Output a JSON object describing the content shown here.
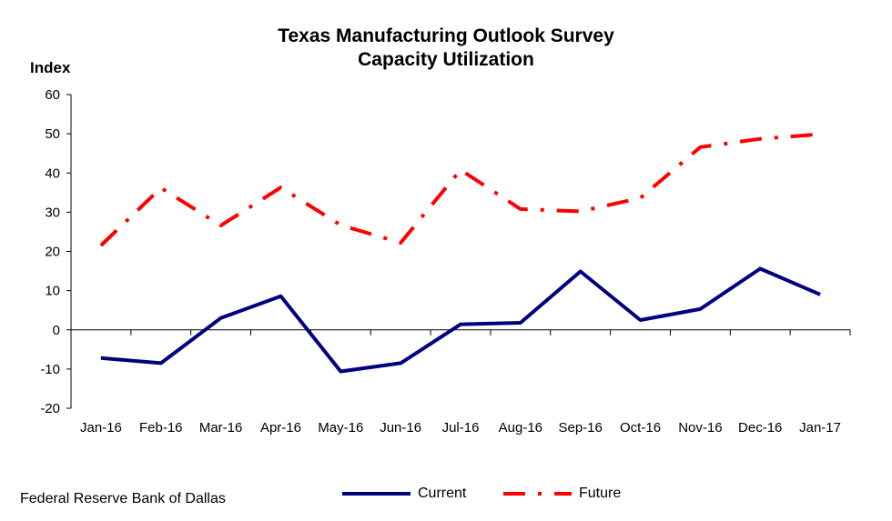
{
  "chart_data": {
    "type": "line",
    "title": "Texas Manufacturing Outlook Survey",
    "subtitle": "Capacity Utilization",
    "ylabel": "Index",
    "xlabel": "",
    "ylim": [
      -20,
      60
    ],
    "yticks": [
      60,
      50,
      40,
      30,
      20,
      10,
      0,
      -10,
      -20
    ],
    "grid": false,
    "legend_position": "bottom",
    "categories": [
      "Jan-16",
      "Feb-16",
      "Mar-16",
      "Apr-16",
      "May-16",
      "Jun-16",
      "Jul-16",
      "Aug-16",
      "Sep-16",
      "Oct-16",
      "Nov-16",
      "Dec-16",
      "Jan-17"
    ],
    "series": [
      {
        "name": "Current",
        "color": "#00007f",
        "style": "solid",
        "values": [
          -7.2,
          -8.5,
          3.0,
          8.6,
          -10.6,
          -8.5,
          1.4,
          1.8,
          14.9,
          2.5,
          5.3,
          15.6,
          9.0
        ]
      },
      {
        "name": "Future",
        "color": "#ff0000",
        "style": "dash-dot",
        "values": [
          21.5,
          36.2,
          26.6,
          36.3,
          26.7,
          22.2,
          40.8,
          30.8,
          30.2,
          33.6,
          46.6,
          48.7,
          49.9
        ]
      }
    ]
  },
  "source": "Federal Reserve Bank of Dallas"
}
